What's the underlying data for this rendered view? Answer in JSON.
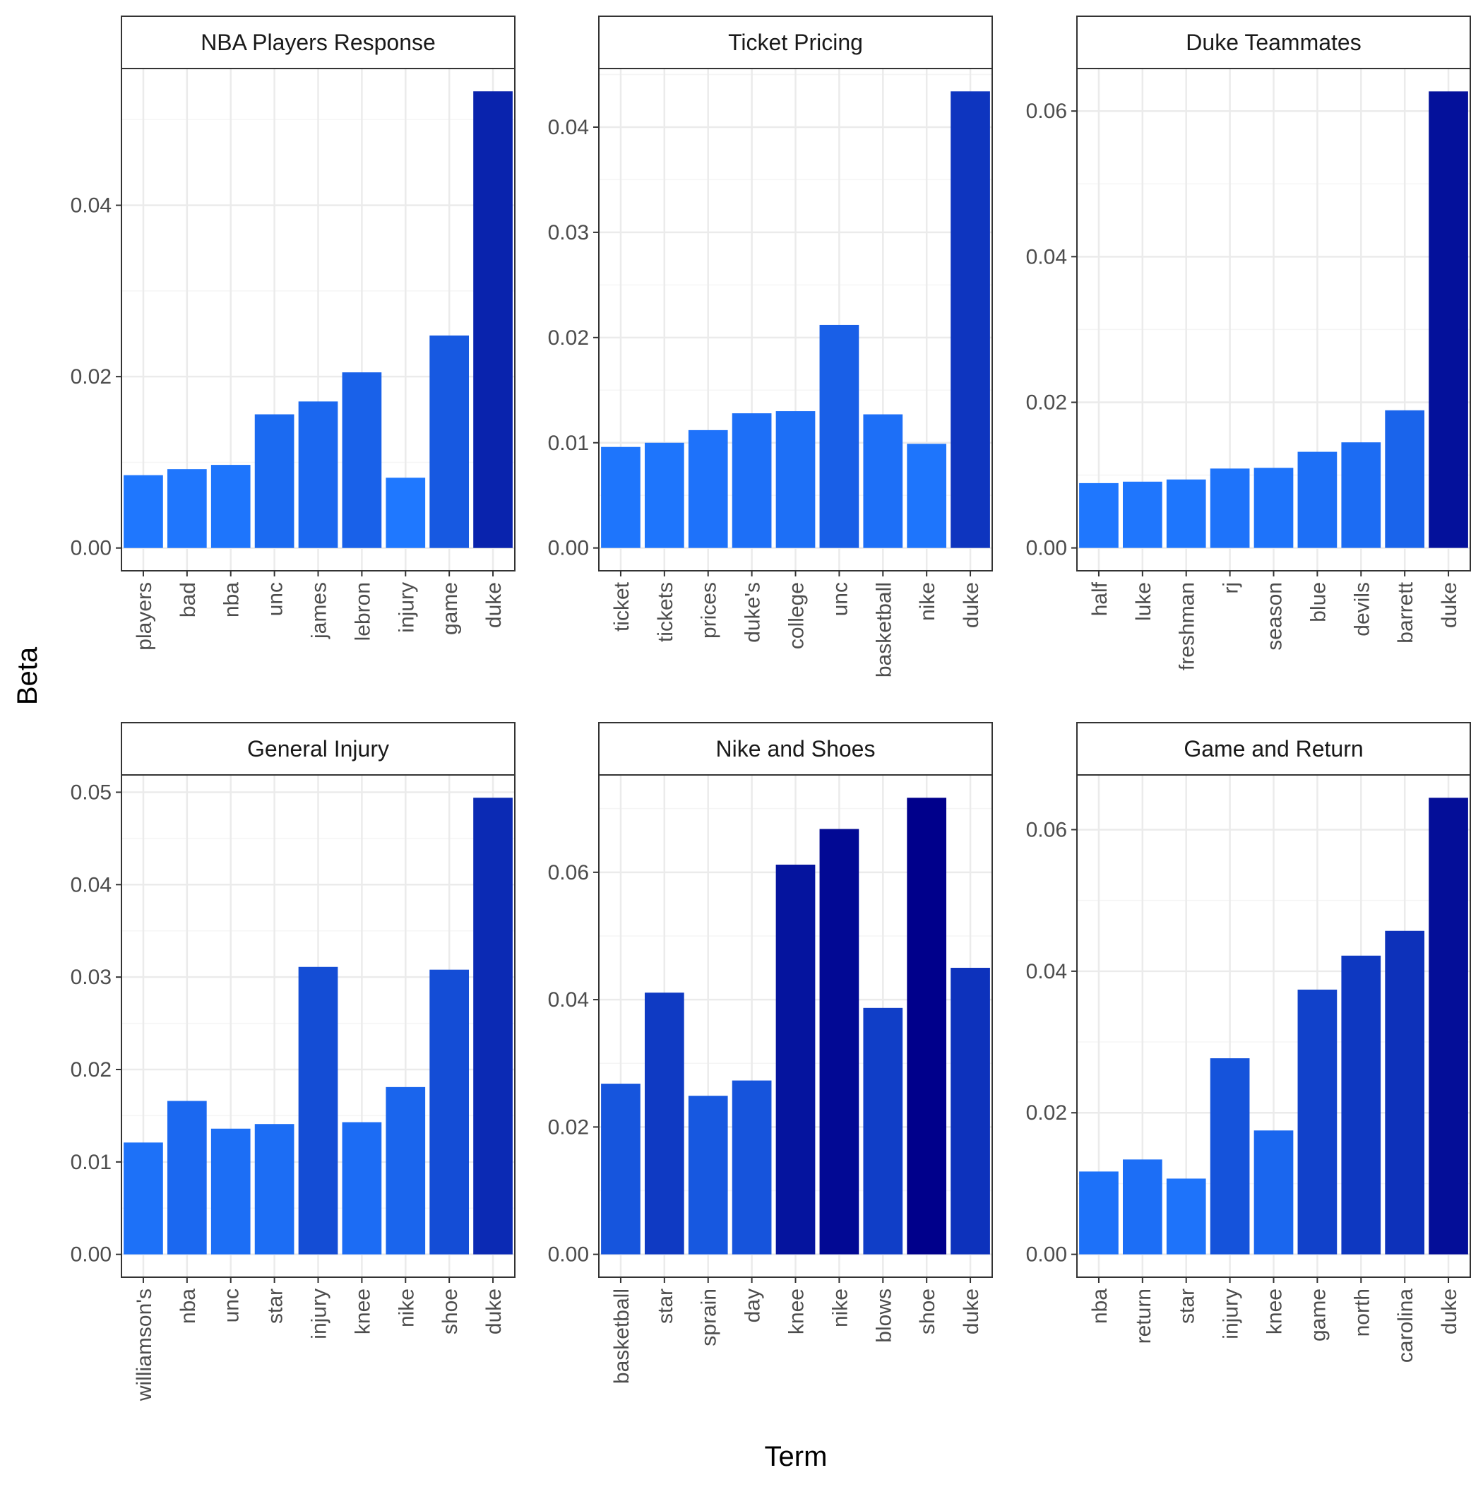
{
  "chart_data": {
    "type": "bar",
    "xlabel": "Term",
    "ylabel": "Beta",
    "grid": true,
    "facets": [
      {
        "title": "NBA Players Response",
        "categories": [
          "players",
          "bad",
          "nba",
          "unc",
          "james",
          "lebron",
          "injury",
          "game",
          "duke"
        ],
        "values": [
          0.0085,
          0.0092,
          0.0097,
          0.0156,
          0.0171,
          0.0205,
          0.0082,
          0.0248,
          0.0533
        ],
        "ylim": [
          -0.00266,
          0.05596
        ],
        "yticks": [
          0.0,
          0.02,
          0.04
        ],
        "ytick_labels": [
          "0.00",
          "0.02",
          "0.04"
        ]
      },
      {
        "title": "Ticket Pricing",
        "categories": [
          "ticket",
          "tickets",
          "prices",
          "duke's",
          "college",
          "unc",
          "basketball",
          "nike",
          "duke"
        ],
        "values": [
          0.0096,
          0.01,
          0.0112,
          0.0128,
          0.013,
          0.0212,
          0.0127,
          0.0099,
          0.0434
        ],
        "ylim": [
          -0.00217,
          0.04557
        ],
        "yticks": [
          0.0,
          0.01,
          0.02,
          0.03,
          0.04
        ],
        "ytick_labels": [
          "0.00",
          "0.01",
          "0.02",
          "0.03",
          "0.04"
        ]
      },
      {
        "title": "Duke Teammates",
        "categories": [
          "half",
          "luke",
          "freshman",
          "rj",
          "season",
          "blue",
          "devils",
          "barrett",
          "duke"
        ],
        "values": [
          0.0089,
          0.0091,
          0.0094,
          0.0109,
          0.011,
          0.0132,
          0.0145,
          0.0189,
          0.0627
        ],
        "ylim": [
          -0.00314,
          0.06584
        ],
        "yticks": [
          0.0,
          0.02,
          0.04,
          0.06
        ],
        "ytick_labels": [
          "0.00",
          "0.02",
          "0.04",
          "0.06"
        ]
      },
      {
        "title": "General Injury",
        "categories": [
          "williamson's",
          "nba",
          "unc",
          "star",
          "injury",
          "knee",
          "nike",
          "shoe",
          "duke"
        ],
        "values": [
          0.0121,
          0.0166,
          0.0136,
          0.0141,
          0.0311,
          0.0143,
          0.0181,
          0.0308,
          0.0494
        ],
        "ylim": [
          -0.00247,
          0.05187
        ],
        "yticks": [
          0.0,
          0.01,
          0.02,
          0.03,
          0.04,
          0.05
        ],
        "ytick_labels": [
          "0.00",
          "0.01",
          "0.02",
          "0.03",
          "0.04",
          "0.05"
        ]
      },
      {
        "title": "Nike and Shoes",
        "categories": [
          "basketball",
          "star",
          "sprain",
          "day",
          "knee",
          "nike",
          "blows",
          "shoe",
          "duke"
        ],
        "values": [
          0.0268,
          0.0411,
          0.0249,
          0.0273,
          0.0612,
          0.0668,
          0.0387,
          0.0717,
          0.045
        ],
        "ylim": [
          -0.00359,
          0.07529
        ],
        "yticks": [
          0.0,
          0.02,
          0.04,
          0.06
        ],
        "ytick_labels": [
          "0.00",
          "0.02",
          "0.04",
          "0.06"
        ]
      },
      {
        "title": "Game and Return",
        "categories": [
          "nba",
          "return",
          "star",
          "injury",
          "knee",
          "game",
          "north",
          "carolina",
          "duke"
        ],
        "values": [
          0.0117,
          0.0134,
          0.0107,
          0.0277,
          0.0175,
          0.0374,
          0.0422,
          0.0457,
          0.0645
        ],
        "ylim": [
          -0.00323,
          0.06773
        ],
        "yticks": [
          0.0,
          0.02,
          0.04,
          0.06
        ],
        "ytick_labels": [
          "0.00",
          "0.02",
          "0.04",
          "0.06"
        ]
      }
    ],
    "fill_scale": {
      "low": "#1f78ff",
      "high": "#00008b",
      "min_value": 0.0082,
      "max_value": 0.0717
    },
    "colors": {
      "grid_major": "#ebebeb",
      "grid_minor": "#f5f5f5",
      "panel_border": "#333333",
      "strip_fill": "#ffffff"
    }
  }
}
